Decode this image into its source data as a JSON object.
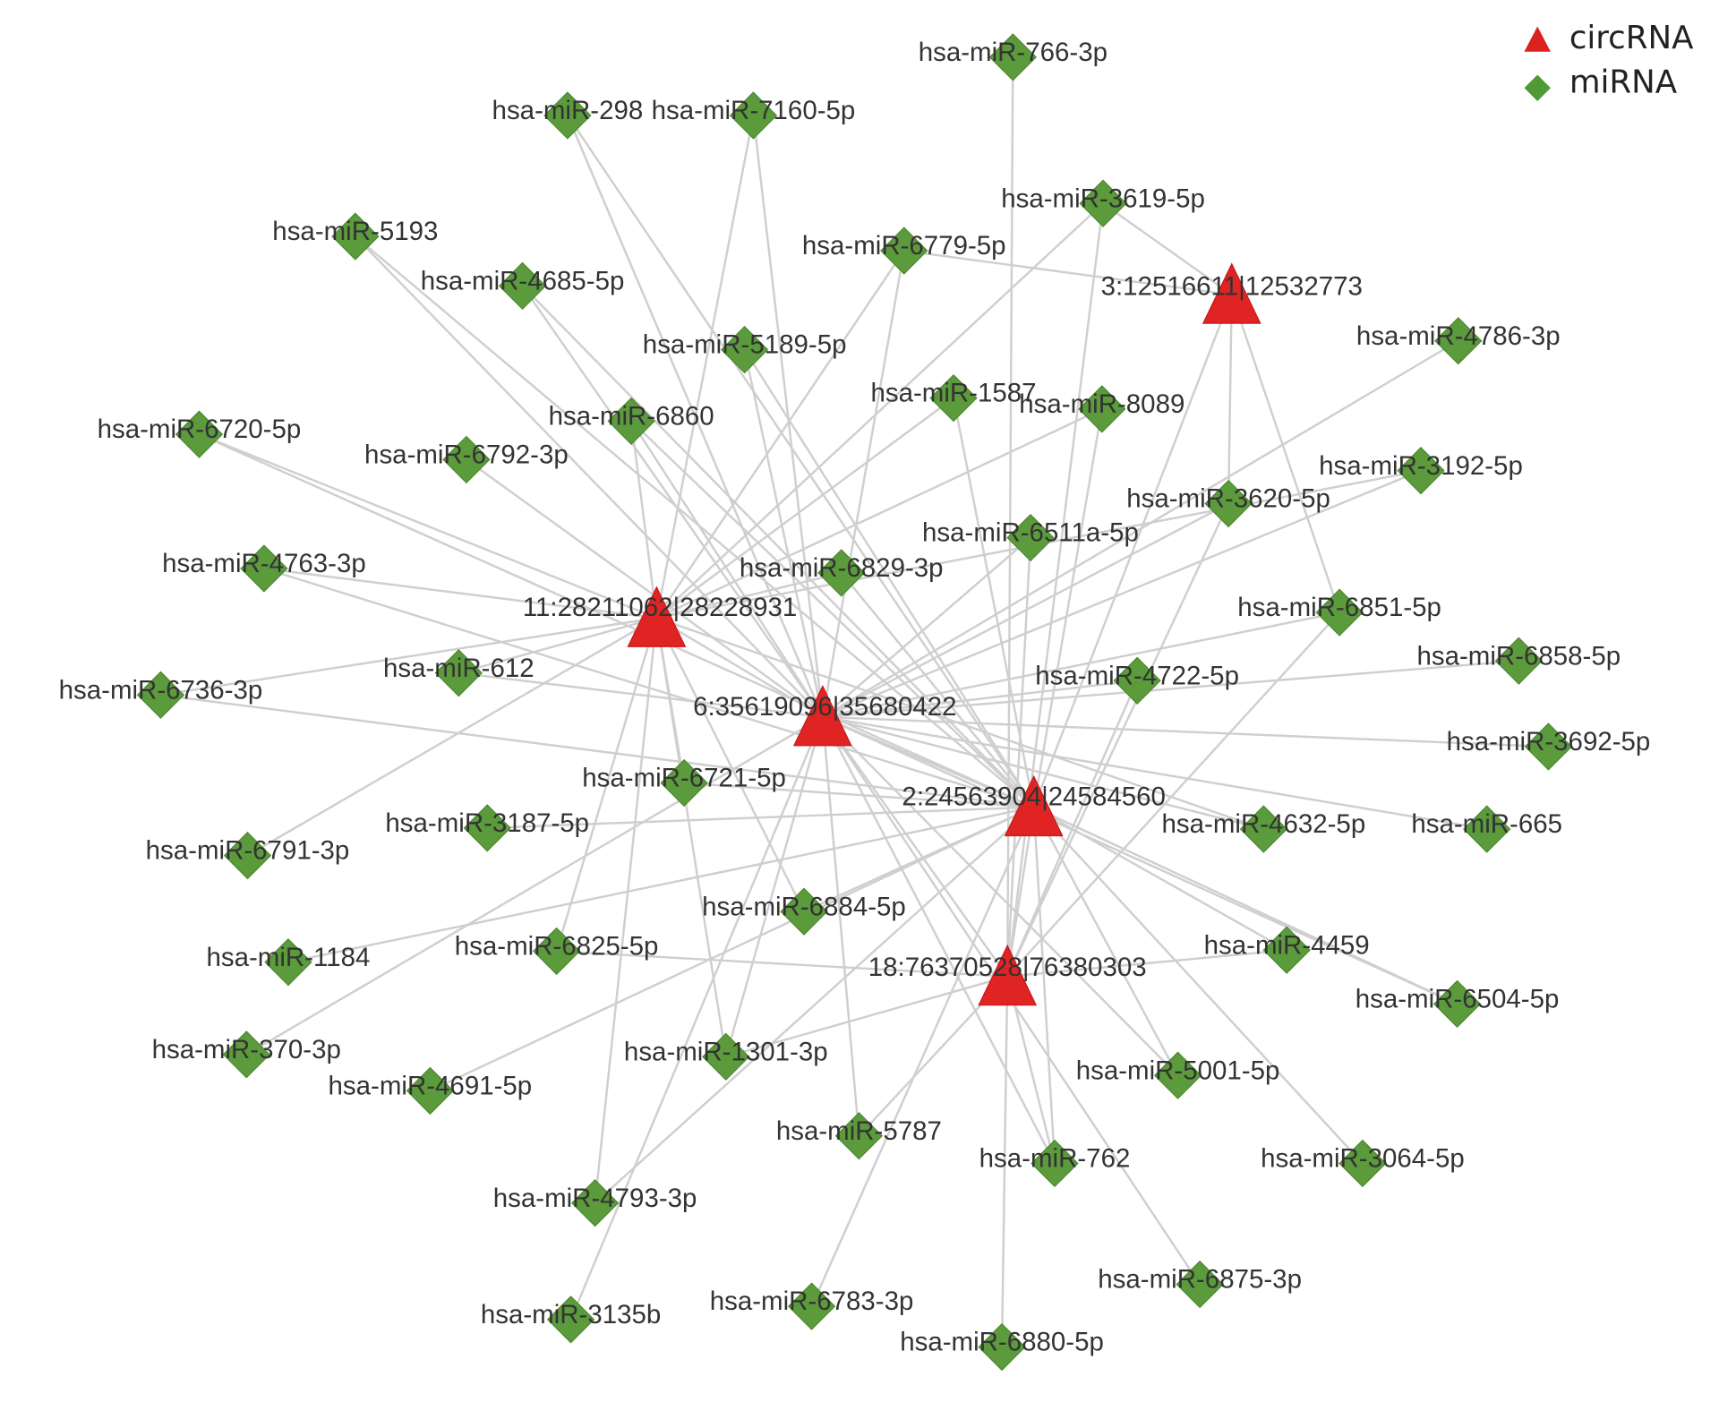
{
  "legend": [
    "circRNA",
    "miRNA"
  ],
  "circrnas": [
    "3:12516611|12532773",
    "11:28211062|28228931",
    "6:35619096|35680422",
    "2:24563904|24584560",
    "18:76370528|76380303"
  ],
  "mirnas": [
    "hsa-miR-766-3p",
    "hsa-miR-298",
    "hsa-miR-7160-5p",
    "hsa-miR-3619-5p",
    "hsa-miR-5193",
    "hsa-miR-6779-5p",
    "hsa-miR-4685-5p",
    "hsa-miR-5189-5p",
    "hsa-miR-4786-3p",
    "hsa-miR-1587",
    "hsa-miR-8089",
    "hsa-miR-6860",
    "hsa-miR-6720-5p",
    "hsa-miR-6792-3p",
    "hsa-miR-3192-5p",
    "hsa-miR-3620-5p",
    "hsa-miR-6511a-5p",
    "hsa-miR-4763-3p",
    "hsa-miR-6829-3p",
    "hsa-miR-6851-5p",
    "hsa-miR-6858-5p",
    "hsa-miR-612",
    "hsa-miR-6736-3p",
    "hsa-miR-4722-5p",
    "hsa-miR-3692-5p",
    "hsa-miR-6721-5p",
    "hsa-miR-3187-5p",
    "hsa-miR-4632-5p",
    "hsa-miR-665",
    "hsa-miR-6791-3p",
    "hsa-miR-6884-5p",
    "hsa-miR-1184",
    "hsa-miR-6825-5p",
    "hsa-miR-4459",
    "hsa-miR-6504-5p",
    "hsa-miR-370-3p",
    "hsa-miR-1301-3p",
    "hsa-miR-4691-5p",
    "hsa-miR-5001-5p",
    "hsa-miR-5787",
    "hsa-miR-762",
    "hsa-miR-3064-5p",
    "hsa-miR-4793-3p",
    "hsa-miR-6875-3p",
    "hsa-miR-3135b",
    "hsa-miR-6783-3p",
    "hsa-miR-6880-5p"
  ]
}
